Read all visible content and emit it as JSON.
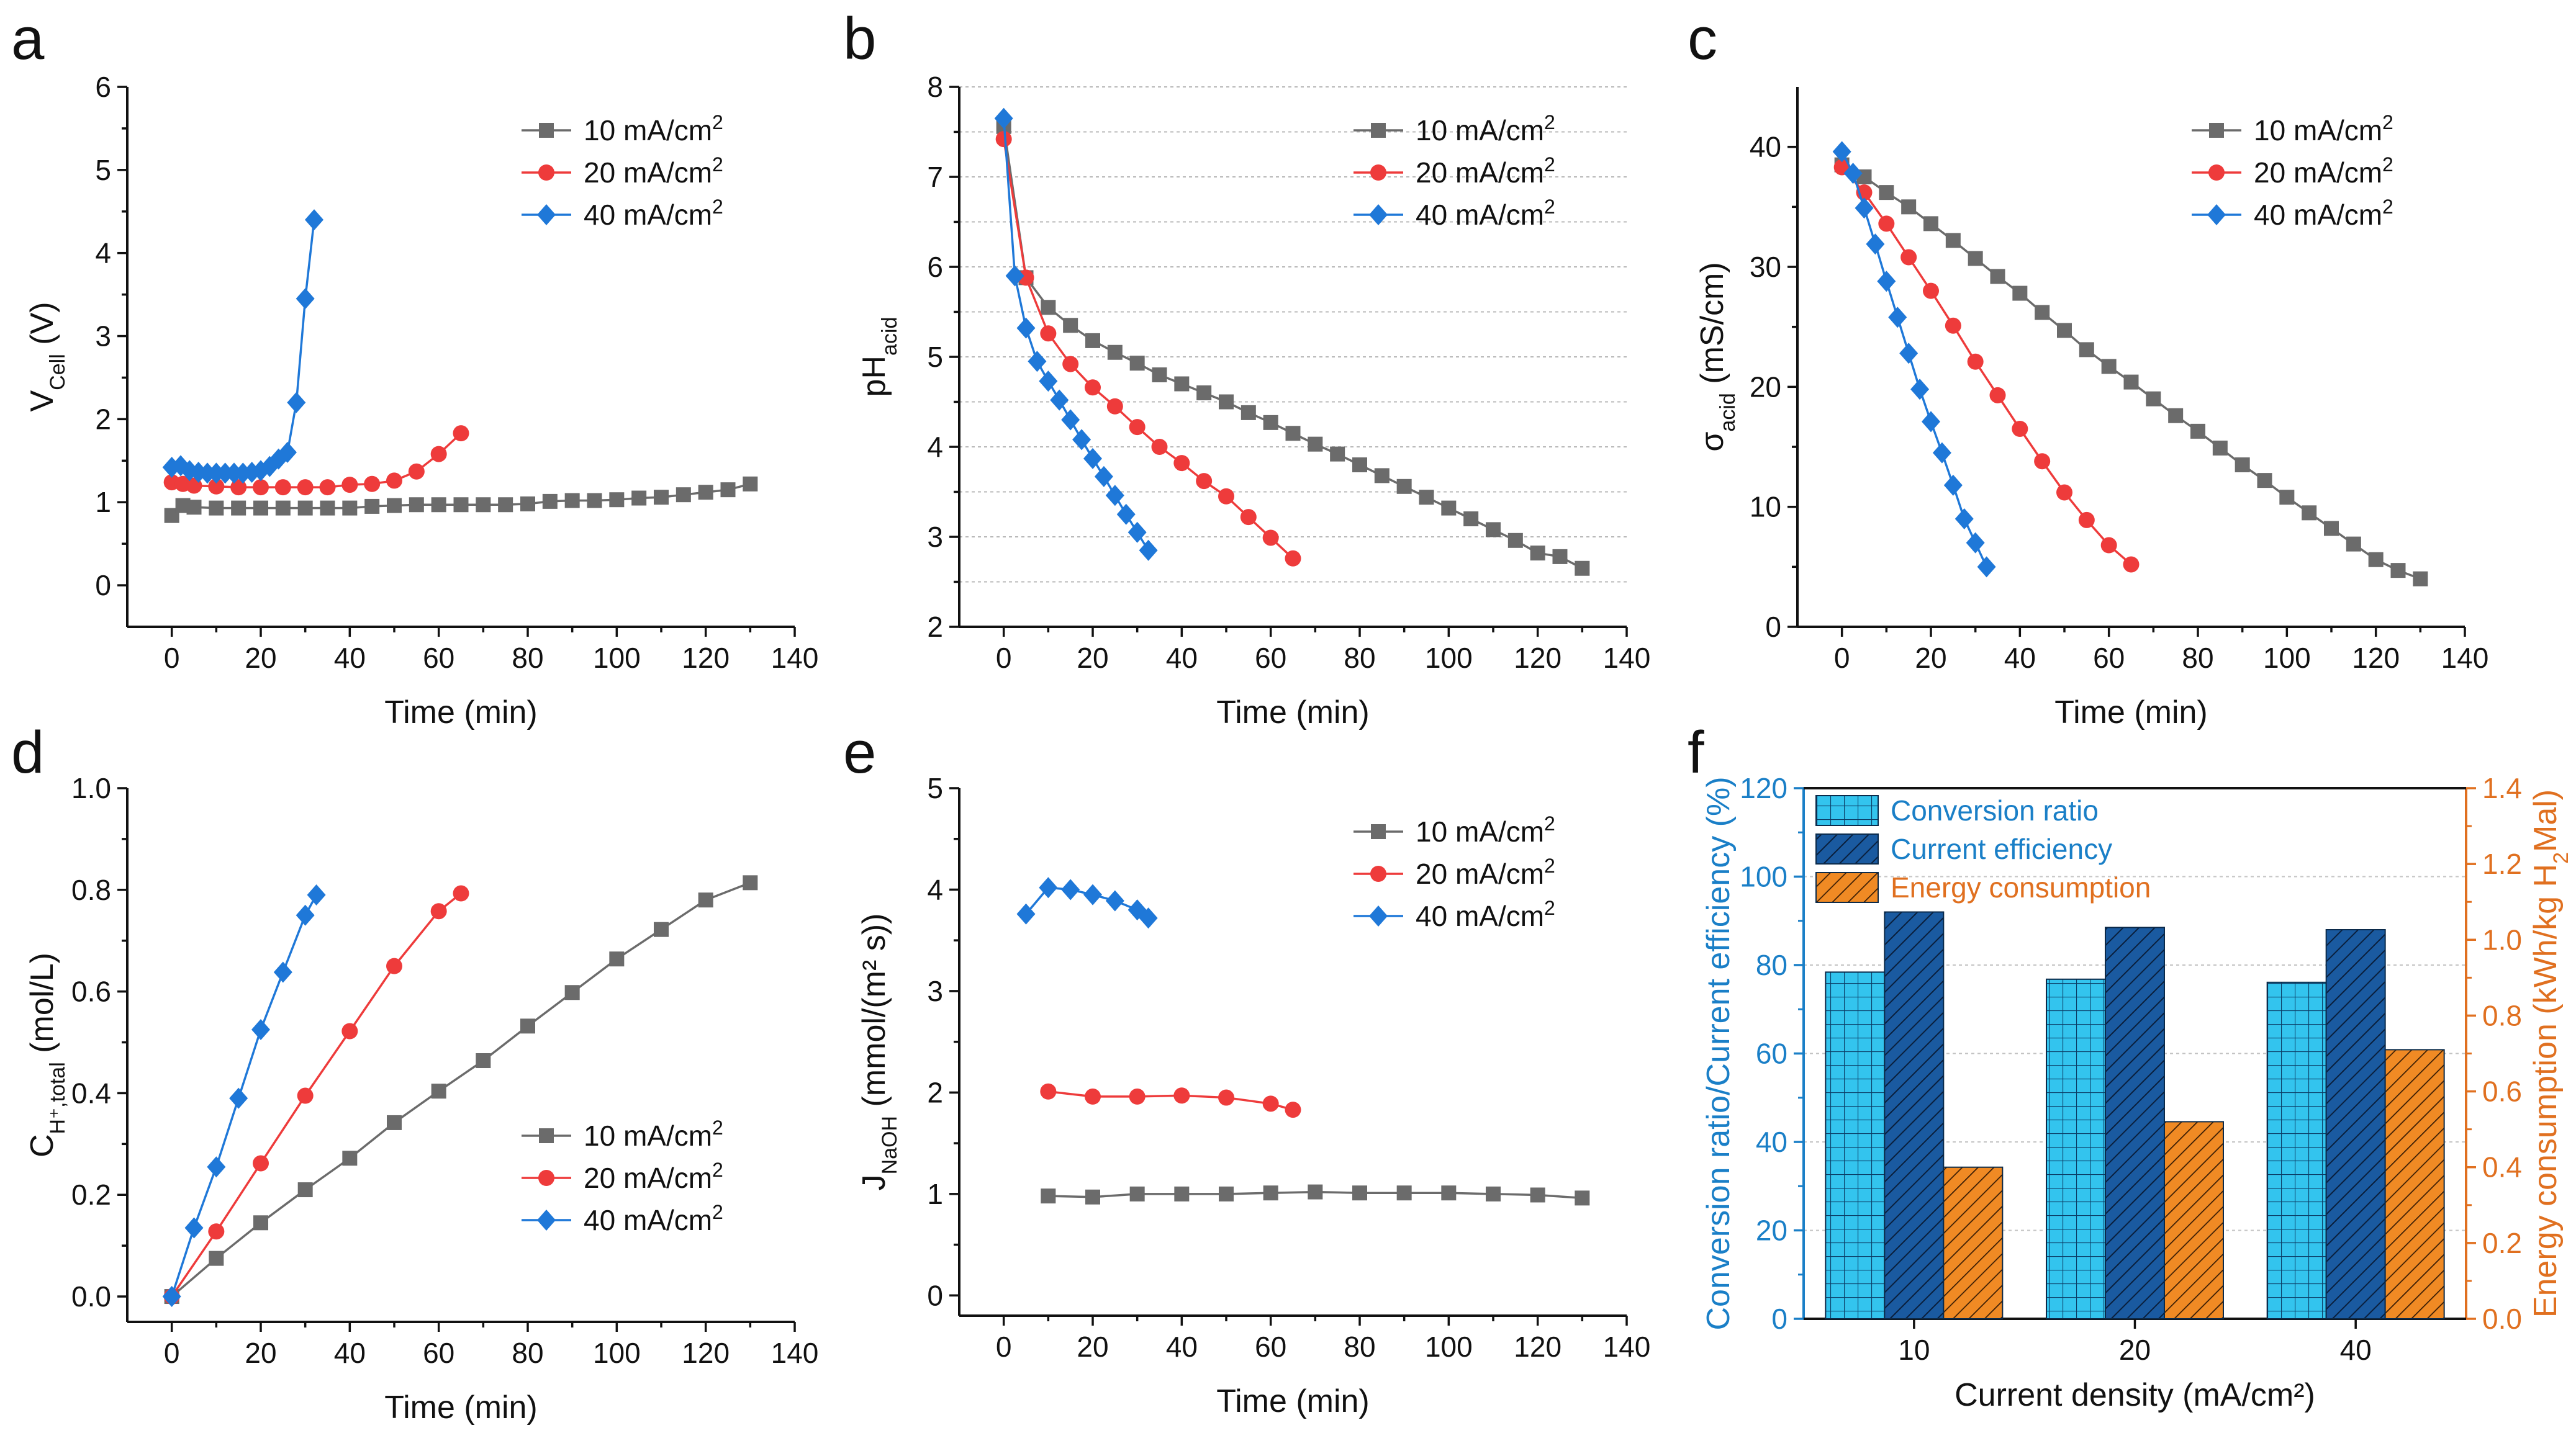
{
  "figure": {
    "panels": [
      "a",
      "b",
      "c",
      "d",
      "e",
      "f"
    ],
    "colors": {
      "10 mA/cm2": "#6b6b6b",
      "20 mA/cm2": "#ee3b3b",
      "40 mA/cm2": "#1f78d8",
      "conversion_ratio": "#33c4ee",
      "current_efficiency": "#1a5aa0",
      "energy_consumption": "#f08a24",
      "right_axis": "#e07020",
      "left_axis_f": "#1a7fc7"
    }
  },
  "chart_data": [
    {
      "panel": "a",
      "type": "line",
      "xlabel": "Time (min)",
      "ylabel_parts": [
        "V",
        "Cell",
        " (V)"
      ],
      "xlim": [
        -10,
        140
      ],
      "ylim": [
        -0.5,
        6
      ],
      "xticks": [
        0,
        20,
        40,
        60,
        80,
        100,
        120,
        140
      ],
      "yticks": [
        0,
        1,
        2,
        3,
        4,
        5,
        6
      ],
      "grid": false,
      "legend": "top-right",
      "series": [
        {
          "name": "10 mA/cm2",
          "marker": "square",
          "x": [
            0,
            2.5,
            5,
            10,
            15,
            20,
            25,
            30,
            35,
            40,
            45,
            50,
            55,
            60,
            65,
            70,
            75,
            80,
            85,
            90,
            95,
            100,
            105,
            110,
            115,
            120,
            125,
            130
          ],
          "y": [
            0.84,
            0.96,
            0.94,
            0.93,
            0.93,
            0.93,
            0.93,
            0.93,
            0.93,
            0.93,
            0.95,
            0.96,
            0.97,
            0.97,
            0.97,
            0.97,
            0.97,
            0.98,
            1.01,
            1.02,
            1.02,
            1.03,
            1.05,
            1.06,
            1.09,
            1.12,
            1.15,
            1.22
          ]
        },
        {
          "name": "20 mA/cm2",
          "marker": "circle",
          "x": [
            0,
            2.5,
            5,
            10,
            15,
            20,
            25,
            30,
            35,
            40,
            45,
            50,
            55,
            60,
            65
          ],
          "y": [
            1.24,
            1.22,
            1.2,
            1.19,
            1.18,
            1.18,
            1.18,
            1.18,
            1.18,
            1.21,
            1.22,
            1.26,
            1.37,
            1.58,
            1.83
          ]
        },
        {
          "name": "40 mA/cm2",
          "marker": "diamond",
          "x": [
            0,
            2,
            4,
            6,
            8,
            10,
            12,
            14,
            16,
            18,
            20,
            22,
            24,
            26,
            28,
            30,
            32
          ],
          "y": [
            1.42,
            1.44,
            1.38,
            1.36,
            1.35,
            1.35,
            1.35,
            1.35,
            1.35,
            1.36,
            1.38,
            1.43,
            1.52,
            1.6,
            2.2,
            3.45,
            4.4
          ]
        }
      ]
    },
    {
      "panel": "b",
      "type": "line",
      "xlabel": "Time (min)",
      "ylabel_parts": [
        "pH",
        "acid",
        ""
      ],
      "xlim": [
        -10,
        140
      ],
      "ylim": [
        2,
        8
      ],
      "xticks": [
        0,
        20,
        40,
        60,
        80,
        100,
        120,
        140
      ],
      "yticks": [
        2,
        3,
        4,
        5,
        6,
        7,
        8
      ],
      "grid": true,
      "legend": "top-right",
      "series": [
        {
          "name": "10 mA/cm2",
          "marker": "square",
          "x": [
            0,
            5,
            10,
            15,
            20,
            25,
            30,
            35,
            40,
            45,
            50,
            55,
            60,
            65,
            70,
            75,
            80,
            85,
            90,
            95,
            100,
            105,
            110,
            115,
            120,
            125,
            130
          ],
          "y": [
            7.56,
            5.88,
            5.55,
            5.35,
            5.18,
            5.05,
            4.93,
            4.8,
            4.7,
            4.6,
            4.5,
            4.38,
            4.27,
            4.15,
            4.03,
            3.92,
            3.8,
            3.68,
            3.56,
            3.44,
            3.32,
            3.2,
            3.08,
            2.96,
            2.82,
            2.78,
            2.65
          ]
        },
        {
          "name": "20 mA/cm2",
          "marker": "circle",
          "x": [
            0,
            5,
            10,
            15,
            20,
            25,
            30,
            35,
            40,
            45,
            50,
            55,
            60,
            65
          ],
          "y": [
            7.42,
            5.88,
            5.26,
            4.92,
            4.66,
            4.45,
            4.22,
            4.0,
            3.82,
            3.62,
            3.45,
            3.22,
            2.99,
            2.76
          ]
        },
        {
          "name": "40 mA/cm2",
          "marker": "diamond",
          "x": [
            0,
            2.5,
            5,
            7.5,
            10,
            12.5,
            15,
            17.5,
            20,
            22.5,
            25,
            27.5,
            30,
            32.5
          ],
          "y": [
            7.65,
            5.9,
            5.32,
            4.95,
            4.73,
            4.52,
            4.3,
            4.08,
            3.87,
            3.67,
            3.46,
            3.25,
            3.05,
            2.85
          ]
        }
      ]
    },
    {
      "panel": "c",
      "type": "line",
      "xlabel": "Time (min)",
      "ylabel_parts": [
        "σ",
        "acid",
        " (mS/cm)"
      ],
      "xlim": [
        -10,
        140
      ],
      "ylim": [
        0,
        45
      ],
      "xticks": [
        0,
        20,
        40,
        60,
        80,
        100,
        120,
        140
      ],
      "yticks": [
        0,
        10,
        20,
        30,
        40
      ],
      "grid": false,
      "legend": "top-right",
      "series": [
        {
          "name": "10 mA/cm2",
          "marker": "square",
          "x": [
            0,
            5,
            10,
            15,
            20,
            25,
            30,
            35,
            40,
            45,
            50,
            55,
            60,
            65,
            70,
            75,
            80,
            85,
            90,
            95,
            100,
            105,
            110,
            115,
            120,
            125,
            130
          ],
          "y": [
            38.5,
            37.5,
            36.2,
            35.0,
            33.6,
            32.2,
            30.7,
            29.2,
            27.8,
            26.2,
            24.7,
            23.1,
            21.7,
            20.4,
            19.0,
            17.6,
            16.3,
            14.9,
            13.5,
            12.2,
            10.8,
            9.5,
            8.2,
            6.9,
            5.6,
            4.7,
            4.0
          ]
        },
        {
          "name": "20 mA/cm2",
          "marker": "circle",
          "x": [
            0,
            5,
            10,
            15,
            20,
            25,
            30,
            35,
            40,
            45,
            50,
            55,
            60,
            65
          ],
          "y": [
            38.3,
            36.2,
            33.6,
            30.8,
            28.0,
            25.1,
            22.1,
            19.3,
            16.5,
            13.8,
            11.2,
            8.9,
            6.8,
            5.2
          ]
        },
        {
          "name": "40 mA/cm2",
          "marker": "diamond",
          "x": [
            0,
            2.5,
            5,
            7.5,
            10,
            12.5,
            15,
            17.5,
            20,
            22.5,
            25,
            27.5,
            30,
            32.5
          ],
          "y": [
            39.6,
            37.8,
            34.9,
            31.9,
            28.8,
            25.8,
            22.8,
            19.8,
            17.1,
            14.5,
            11.8,
            9.0,
            7.0,
            5.0
          ]
        }
      ]
    },
    {
      "panel": "d",
      "type": "line",
      "xlabel": "Time (min)",
      "ylabel_parts": [
        "C",
        "H⁺,total",
        " (mol/L)"
      ],
      "xlim": [
        -10,
        140
      ],
      "ylim": [
        -0.05,
        1.0
      ],
      "xticks": [
        0,
        20,
        40,
        60,
        80,
        100,
        120,
        140
      ],
      "yticks": [
        0.0,
        0.2,
        0.4,
        0.6,
        0.8,
        1.0
      ],
      "grid": false,
      "legend": "bottom-right",
      "series": [
        {
          "name": "10 mA/cm2",
          "marker": "square",
          "x": [
            0,
            10,
            20,
            30,
            40,
            50,
            60,
            70,
            80,
            90,
            100,
            110,
            120,
            130
          ],
          "y": [
            0.0,
            0.075,
            0.145,
            0.21,
            0.272,
            0.342,
            0.404,
            0.464,
            0.532,
            0.598,
            0.664,
            0.722,
            0.78,
            0.814
          ]
        },
        {
          "name": "20 mA/cm2",
          "marker": "circle",
          "x": [
            0,
            10,
            20,
            30,
            40,
            50,
            60,
            65
          ],
          "y": [
            0.0,
            0.128,
            0.262,
            0.395,
            0.522,
            0.65,
            0.758,
            0.793
          ]
        },
        {
          "name": "40 mA/cm2",
          "marker": "diamond",
          "x": [
            0,
            5,
            10,
            15,
            20,
            25,
            30,
            32.5
          ],
          "y": [
            0.0,
            0.135,
            0.255,
            0.39,
            0.525,
            0.638,
            0.75,
            0.79
          ]
        }
      ]
    },
    {
      "panel": "e",
      "type": "line",
      "xlabel": "Time (min)",
      "ylabel_parts": [
        "J",
        "NaOH",
        " (mmol/(m² s))"
      ],
      "xlim": [
        -10,
        140
      ],
      "ylim": [
        -0.2,
        5
      ],
      "xticks": [
        0,
        20,
        40,
        60,
        80,
        100,
        120,
        140
      ],
      "yticks": [
        0,
        1,
        2,
        3,
        4,
        5
      ],
      "grid": false,
      "legend": "top-right",
      "series": [
        {
          "name": "10 mA/cm2",
          "marker": "square",
          "x": [
            10,
            20,
            30,
            40,
            50,
            60,
            70,
            80,
            90,
            100,
            110,
            120,
            130
          ],
          "y": [
            0.98,
            0.97,
            1.0,
            1.0,
            1.0,
            1.01,
            1.02,
            1.01,
            1.01,
            1.01,
            1.0,
            0.99,
            0.96
          ]
        },
        {
          "name": "20 mA/cm2",
          "marker": "circle",
          "x": [
            10,
            20,
            30,
            40,
            50,
            60,
            65
          ],
          "y": [
            2.01,
            1.96,
            1.96,
            1.97,
            1.95,
            1.89,
            1.83
          ]
        },
        {
          "name": "40 mA/cm2",
          "marker": "diamond",
          "x": [
            5,
            10,
            15,
            20,
            25,
            30,
            32.5
          ],
          "y": [
            3.76,
            4.02,
            4.0,
            3.95,
            3.89,
            3.8,
            3.72
          ]
        }
      ]
    },
    {
      "panel": "f",
      "type": "bar",
      "xlabel": "Current density (mA/cm²)",
      "ylabel_left": "Conversion ratio/Current efficiency (%)",
      "ylabel_right_parts": [
        "Energy consumption (kWh/kg H",
        "2",
        "Mal)"
      ],
      "categories": [
        "10",
        "20",
        "40"
      ],
      "ylim_left": [
        0,
        120
      ],
      "ylim_right": [
        0,
        1.4
      ],
      "yticks_left": [
        0,
        20,
        40,
        60,
        80,
        100,
        120
      ],
      "yticks_right": [
        0.0,
        0.2,
        0.4,
        0.6,
        0.8,
        1.0,
        1.2,
        1.4
      ],
      "grid": true,
      "legend": "top-left",
      "series": [
        {
          "name": "Conversion ratio",
          "axis": "left",
          "pattern": "grid",
          "values": [
            78.4,
            76.8,
            76.1
          ]
        },
        {
          "name": "Current efficiency",
          "axis": "left",
          "pattern": "hatch",
          "values": [
            92.0,
            88.5,
            88.0
          ]
        },
        {
          "name": "Energy consumption",
          "axis": "right",
          "pattern": "hatch",
          "values": [
            0.4,
            0.52,
            0.71
          ]
        }
      ]
    }
  ]
}
